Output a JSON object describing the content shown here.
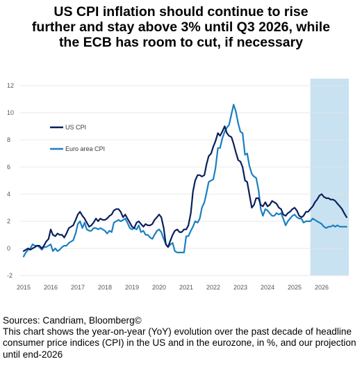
{
  "title_lines": [
    "US CPI inflation should continue to rise",
    "further and stay above 3% until Q3 2026, while",
    "the ECB has room to cut, if necessary"
  ],
  "footer": {
    "source": "Sources: Candriam, Bloomberg©",
    "description": "This chart shows the year-on-year (YoY) evolution over the past decade of headline consumer price indices (CPI) in the US and in the eurozone, in %, and our projection until end-2026"
  },
  "colors": {
    "us": "#0a1f5c",
    "euro": "#1a7fc1",
    "projection": "#c9e2f1",
    "grid": "#e3e3e3"
  },
  "chart_data": {
    "type": "line",
    "title": "US CPI inflation should continue to rise further and stay above 3% until Q3 2026, while the ECB has room to cut, if necessary",
    "xlabel": "",
    "ylabel": "",
    "xlim": [
      2015.0,
      2027.0
    ],
    "ylim": [
      -2,
      12
    ],
    "yticks": [
      -2,
      0,
      2,
      4,
      6,
      8,
      10,
      12
    ],
    "xticks": [
      "2015",
      "2016",
      "2017",
      "2018",
      "2019",
      "2020",
      "2021",
      "2022",
      "2023",
      "2024",
      "2025",
      "2026"
    ],
    "grid": "horizontal",
    "legend_position": "upper-left",
    "projection_period": [
      2025.58,
      2027.0
    ],
    "series": [
      {
        "name": "US CPI",
        "points": [
          [
            2015.0,
            -0.2
          ],
          [
            2015.08,
            -0.1
          ],
          [
            2015.17,
            0.0
          ],
          [
            2015.25,
            -0.1
          ],
          [
            2015.33,
            0.0
          ],
          [
            2015.42,
            0.1
          ],
          [
            2015.5,
            0.2
          ],
          [
            2015.58,
            0.2
          ],
          [
            2015.67,
            0.0
          ],
          [
            2015.75,
            0.2
          ],
          [
            2015.83,
            0.5
          ],
          [
            2015.92,
            0.7
          ],
          [
            2016.0,
            1.4
          ],
          [
            2016.08,
            1.0
          ],
          [
            2016.17,
            0.9
          ],
          [
            2016.25,
            1.1
          ],
          [
            2016.33,
            1.0
          ],
          [
            2016.42,
            1.0
          ],
          [
            2016.5,
            0.8
          ],
          [
            2016.58,
            1.1
          ],
          [
            2016.67,
            1.5
          ],
          [
            2016.75,
            1.6
          ],
          [
            2016.83,
            1.7
          ],
          [
            2016.92,
            2.1
          ],
          [
            2017.0,
            2.5
          ],
          [
            2017.08,
            2.7
          ],
          [
            2017.17,
            2.4
          ],
          [
            2017.25,
            2.2
          ],
          [
            2017.33,
            1.9
          ],
          [
            2017.42,
            1.6
          ],
          [
            2017.5,
            1.7
          ],
          [
            2017.58,
            1.9
          ],
          [
            2017.67,
            2.2
          ],
          [
            2017.75,
            2.0
          ],
          [
            2017.83,
            2.2
          ],
          [
            2017.92,
            2.1
          ],
          [
            2018.0,
            2.1
          ],
          [
            2018.08,
            2.2
          ],
          [
            2018.17,
            2.4
          ],
          [
            2018.25,
            2.5
          ],
          [
            2018.33,
            2.8
          ],
          [
            2018.42,
            2.9
          ],
          [
            2018.5,
            2.9
          ],
          [
            2018.58,
            2.7
          ],
          [
            2018.67,
            2.3
          ],
          [
            2018.75,
            2.5
          ],
          [
            2018.83,
            2.2
          ],
          [
            2018.92,
            1.9
          ],
          [
            2019.0,
            1.6
          ],
          [
            2019.08,
            1.5
          ],
          [
            2019.17,
            1.9
          ],
          [
            2019.25,
            2.0
          ],
          [
            2019.33,
            1.8
          ],
          [
            2019.42,
            1.6
          ],
          [
            2019.5,
            1.8
          ],
          [
            2019.58,
            1.7
          ],
          [
            2019.67,
            1.7
          ],
          [
            2019.75,
            1.8
          ],
          [
            2019.83,
            2.1
          ],
          [
            2019.92,
            2.3
          ],
          [
            2020.0,
            2.5
          ],
          [
            2020.08,
            2.3
          ],
          [
            2020.17,
            1.5
          ],
          [
            2020.25,
            0.3
          ],
          [
            2020.33,
            0.1
          ],
          [
            2020.42,
            0.6
          ],
          [
            2020.5,
            1.0
          ],
          [
            2020.58,
            1.3
          ],
          [
            2020.67,
            1.4
          ],
          [
            2020.75,
            1.2
          ],
          [
            2020.83,
            1.2
          ],
          [
            2020.92,
            1.4
          ],
          [
            2021.0,
            1.4
          ],
          [
            2021.08,
            1.7
          ],
          [
            2021.17,
            2.6
          ],
          [
            2021.25,
            4.2
          ],
          [
            2021.33,
            5.0
          ],
          [
            2021.42,
            5.4
          ],
          [
            2021.5,
            5.4
          ],
          [
            2021.58,
            5.3
          ],
          [
            2021.67,
            5.4
          ],
          [
            2021.75,
            6.2
          ],
          [
            2021.83,
            6.8
          ],
          [
            2021.92,
            7.0
          ],
          [
            2022.0,
            7.5
          ],
          [
            2022.08,
            7.9
          ],
          [
            2022.17,
            8.5
          ],
          [
            2022.25,
            8.3
          ],
          [
            2022.33,
            8.6
          ],
          [
            2022.42,
            9.0
          ],
          [
            2022.5,
            8.5
          ],
          [
            2022.58,
            8.3
          ],
          [
            2022.67,
            8.2
          ],
          [
            2022.75,
            7.7
          ],
          [
            2022.83,
            7.1
          ],
          [
            2022.92,
            6.5
          ],
          [
            2023.0,
            6.4
          ],
          [
            2023.08,
            6.0
          ],
          [
            2023.17,
            5.0
          ],
          [
            2023.25,
            4.9
          ],
          [
            2023.33,
            4.0
          ],
          [
            2023.42,
            3.0
          ],
          [
            2023.5,
            3.2
          ],
          [
            2023.58,
            3.7
          ],
          [
            2023.67,
            3.7
          ],
          [
            2023.75,
            3.2
          ],
          [
            2023.83,
            3.1
          ],
          [
            2023.92,
            3.4
          ],
          [
            2024.0,
            3.1
          ],
          [
            2024.08,
            3.2
          ],
          [
            2024.17,
            3.5
          ],
          [
            2024.25,
            3.4
          ],
          [
            2024.33,
            3.3
          ],
          [
            2024.42,
            3.0
          ],
          [
            2024.5,
            2.9
          ],
          [
            2024.58,
            2.5
          ],
          [
            2024.67,
            2.4
          ],
          [
            2024.75,
            2.6
          ],
          [
            2024.83,
            2.7
          ],
          [
            2024.92,
            2.9
          ],
          [
            2025.0,
            3.0
          ],
          [
            2025.08,
            2.8
          ],
          [
            2025.17,
            2.4
          ],
          [
            2025.25,
            2.3
          ],
          [
            2025.33,
            2.4
          ],
          [
            2025.42,
            2.7
          ],
          [
            2025.5,
            2.7
          ],
          [
            2025.58,
            2.9
          ],
          [
            2025.67,
            3.1
          ],
          [
            2025.75,
            3.4
          ],
          [
            2025.83,
            3.6
          ],
          [
            2025.92,
            3.9
          ],
          [
            2026.0,
            4.0
          ],
          [
            2026.08,
            3.8
          ],
          [
            2026.17,
            3.7
          ],
          [
            2026.25,
            3.7
          ],
          [
            2026.33,
            3.6
          ],
          [
            2026.42,
            3.6
          ],
          [
            2026.5,
            3.5
          ],
          [
            2026.58,
            3.3
          ],
          [
            2026.67,
            3.1
          ],
          [
            2026.75,
            2.9
          ],
          [
            2026.83,
            2.6
          ],
          [
            2026.92,
            2.3
          ]
        ]
      },
      {
        "name": "Euro area CPI",
        "points": [
          [
            2015.0,
            -0.6
          ],
          [
            2015.08,
            -0.3
          ],
          [
            2015.17,
            -0.1
          ],
          [
            2015.25,
            0.0
          ],
          [
            2015.33,
            0.3
          ],
          [
            2015.42,
            0.2
          ],
          [
            2015.5,
            0.2
          ],
          [
            2015.58,
            0.1
          ],
          [
            2015.67,
            -0.1
          ],
          [
            2015.75,
            0.1
          ],
          [
            2015.83,
            0.1
          ],
          [
            2015.92,
            0.2
          ],
          [
            2016.0,
            0.3
          ],
          [
            2016.08,
            -0.2
          ],
          [
            2016.17,
            0.0
          ],
          [
            2016.25,
            -0.2
          ],
          [
            2016.33,
            -0.1
          ],
          [
            2016.42,
            0.1
          ],
          [
            2016.5,
            0.2
          ],
          [
            2016.58,
            0.2
          ],
          [
            2016.67,
            0.4
          ],
          [
            2016.75,
            0.5
          ],
          [
            2016.83,
            0.6
          ],
          [
            2016.92,
            1.1
          ],
          [
            2017.0,
            1.8
          ],
          [
            2017.08,
            2.0
          ],
          [
            2017.17,
            1.5
          ],
          [
            2017.25,
            1.9
          ],
          [
            2017.33,
            1.4
          ],
          [
            2017.42,
            1.3
          ],
          [
            2017.5,
            1.3
          ],
          [
            2017.58,
            1.5
          ],
          [
            2017.67,
            1.5
          ],
          [
            2017.75,
            1.4
          ],
          [
            2017.83,
            1.5
          ],
          [
            2017.92,
            1.4
          ],
          [
            2018.0,
            1.3
          ],
          [
            2018.08,
            1.1
          ],
          [
            2018.17,
            1.3
          ],
          [
            2018.25,
            1.2
          ],
          [
            2018.33,
            1.9
          ],
          [
            2018.42,
            2.0
          ],
          [
            2018.5,
            2.1
          ],
          [
            2018.58,
            2.0
          ],
          [
            2018.67,
            2.1
          ],
          [
            2018.75,
            2.2
          ],
          [
            2018.83,
            1.9
          ],
          [
            2018.92,
            1.5
          ],
          [
            2019.0,
            1.4
          ],
          [
            2019.08,
            1.5
          ],
          [
            2019.17,
            1.4
          ],
          [
            2019.25,
            1.7
          ],
          [
            2019.33,
            1.2
          ],
          [
            2019.42,
            1.3
          ],
          [
            2019.5,
            1.0
          ],
          [
            2019.58,
            1.0
          ],
          [
            2019.67,
            0.8
          ],
          [
            2019.75,
            0.7
          ],
          [
            2019.83,
            1.0
          ],
          [
            2019.92,
            1.3
          ],
          [
            2020.0,
            1.4
          ],
          [
            2020.08,
            1.2
          ],
          [
            2020.17,
            0.7
          ],
          [
            2020.25,
            0.3
          ],
          [
            2020.33,
            0.1
          ],
          [
            2020.42,
            0.3
          ],
          [
            2020.5,
            0.4
          ],
          [
            2020.58,
            -0.2
          ],
          [
            2020.67,
            -0.3
          ],
          [
            2020.75,
            -0.3
          ],
          [
            2020.83,
            -0.3
          ],
          [
            2020.92,
            -0.3
          ],
          [
            2021.0,
            0.9
          ],
          [
            2021.08,
            0.9
          ],
          [
            2021.17,
            1.3
          ],
          [
            2021.25,
            1.6
          ],
          [
            2021.33,
            2.0
          ],
          [
            2021.42,
            1.9
          ],
          [
            2021.5,
            2.2
          ],
          [
            2021.58,
            3.0
          ],
          [
            2021.67,
            3.4
          ],
          [
            2021.75,
            4.1
          ],
          [
            2021.83,
            4.9
          ],
          [
            2021.92,
            5.0
          ],
          [
            2022.0,
            5.1
          ],
          [
            2022.08,
            5.9
          ],
          [
            2022.17,
            7.4
          ],
          [
            2022.25,
            7.4
          ],
          [
            2022.33,
            8.1
          ],
          [
            2022.42,
            8.6
          ],
          [
            2022.5,
            8.9
          ],
          [
            2022.58,
            9.1
          ],
          [
            2022.67,
            9.9
          ],
          [
            2022.75,
            10.6
          ],
          [
            2022.83,
            10.1
          ],
          [
            2022.92,
            9.2
          ],
          [
            2023.0,
            8.6
          ],
          [
            2023.08,
            8.5
          ],
          [
            2023.17,
            6.9
          ],
          [
            2023.25,
            7.0
          ],
          [
            2023.33,
            6.1
          ],
          [
            2023.42,
            5.5
          ],
          [
            2023.5,
            5.3
          ],
          [
            2023.58,
            5.2
          ],
          [
            2023.67,
            4.3
          ],
          [
            2023.75,
            2.9
          ],
          [
            2023.83,
            2.4
          ],
          [
            2023.92,
            2.9
          ],
          [
            2024.0,
            2.8
          ],
          [
            2024.08,
            2.6
          ],
          [
            2024.17,
            2.4
          ],
          [
            2024.25,
            2.4
          ],
          [
            2024.33,
            2.6
          ],
          [
            2024.42,
            2.5
          ],
          [
            2024.5,
            2.6
          ],
          [
            2024.58,
            2.2
          ],
          [
            2024.67,
            1.7
          ],
          [
            2024.75,
            2.0
          ],
          [
            2024.83,
            2.2
          ],
          [
            2024.92,
            2.4
          ],
          [
            2025.0,
            2.5
          ],
          [
            2025.08,
            2.3
          ],
          [
            2025.17,
            2.2
          ],
          [
            2025.25,
            2.2
          ],
          [
            2025.33,
            1.9
          ],
          [
            2025.42,
            2.0
          ],
          [
            2025.5,
            2.0
          ],
          [
            2025.58,
            2.0
          ],
          [
            2025.67,
            2.2
          ],
          [
            2025.75,
            2.1
          ],
          [
            2025.83,
            2.0
          ],
          [
            2025.92,
            1.9
          ],
          [
            2026.0,
            1.8
          ],
          [
            2026.08,
            1.6
          ],
          [
            2026.17,
            1.5
          ],
          [
            2026.25,
            1.6
          ],
          [
            2026.33,
            1.6
          ],
          [
            2026.42,
            1.7
          ],
          [
            2026.5,
            1.6
          ],
          [
            2026.58,
            1.7
          ],
          [
            2026.67,
            1.6
          ],
          [
            2026.75,
            1.6
          ],
          [
            2026.83,
            1.6
          ],
          [
            2026.92,
            1.6
          ]
        ]
      }
    ]
  }
}
